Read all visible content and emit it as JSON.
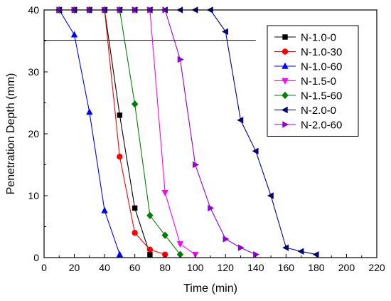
{
  "chart_data": {
    "type": "line",
    "title": "",
    "xlabel": "Time (min)",
    "ylabel": "Penetration Depth (mm)",
    "xlim": [
      0,
      220
    ],
    "ylim": [
      0,
      40
    ],
    "xticks": [
      0,
      20,
      40,
      60,
      80,
      100,
      120,
      140,
      160,
      180,
      200,
      220
    ],
    "yticks": [
      0,
      10,
      20,
      30,
      40
    ],
    "grid": false,
    "legend_position": "top-right",
    "reference_line": {
      "y": 35.1,
      "x": [
        0,
        140
      ],
      "color": "#000000"
    },
    "series": [
      {
        "name": "N-1.0-0",
        "color": "#000000",
        "marker": "square",
        "x": [
          10,
          20,
          30,
          40,
          50,
          60,
          70
        ],
        "y": [
          40,
          40,
          40,
          40,
          23.0,
          8.0,
          0.5
        ]
      },
      {
        "name": "N-1.0-30",
        "color": "#ff0000",
        "marker": "circle",
        "x": [
          10,
          20,
          30,
          40,
          50,
          60,
          70,
          80
        ],
        "y": [
          40,
          40,
          40,
          40,
          16.3,
          4.0,
          1.3,
          0.5
        ]
      },
      {
        "name": "N-1.0-60",
        "color": "#0000ff",
        "marker": "triangle-up",
        "x": [
          10,
          20,
          30,
          40,
          50
        ],
        "y": [
          40,
          36.0,
          23.5,
          7.6,
          0.5
        ]
      },
      {
        "name": "N-1.5-0",
        "color": "#ff00ff",
        "marker": "triangle-down",
        "x": [
          10,
          20,
          30,
          40,
          50,
          60,
          70,
          80,
          90,
          100
        ],
        "y": [
          40,
          40,
          40,
          40,
          40,
          40,
          40,
          10.5,
          2.2,
          0.5
        ]
      },
      {
        "name": "N-1.5-60",
        "color": "#008000",
        "marker": "diamond",
        "x": [
          10,
          20,
          30,
          40,
          50,
          60,
          70,
          80,
          90
        ],
        "y": [
          40,
          40,
          40,
          40,
          40,
          24.8,
          6.8,
          3.6,
          0.5
        ]
      },
      {
        "name": "N-2.0-0",
        "color": "#000080",
        "marker": "triangle-left",
        "x": [
          10,
          20,
          30,
          40,
          50,
          60,
          70,
          80,
          90,
          100,
          110,
          120,
          130,
          140,
          150,
          160,
          170,
          180
        ],
        "y": [
          40,
          40,
          40,
          40,
          40,
          40,
          40,
          40,
          40,
          40,
          40,
          36.5,
          22.2,
          17.2,
          10.0,
          1.6,
          1.0,
          0.5
        ]
      },
      {
        "name": "N-2.0-60",
        "color": "#9400d3",
        "marker": "triangle-right",
        "x": [
          10,
          20,
          30,
          40,
          50,
          60,
          70,
          80,
          90,
          100,
          110,
          120,
          130,
          140
        ],
        "y": [
          40,
          40,
          40,
          40,
          40,
          40,
          40,
          40,
          32.0,
          15.0,
          8.0,
          3.0,
          1.6,
          0.5
        ]
      }
    ]
  }
}
